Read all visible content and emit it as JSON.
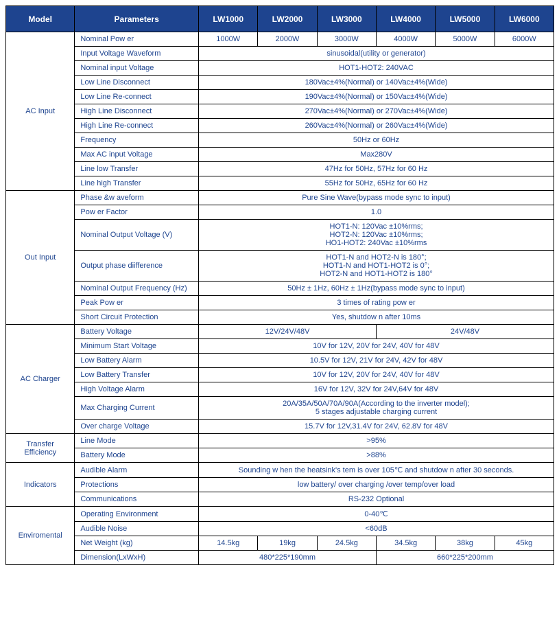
{
  "header": {
    "model": "Model",
    "params": "Parameters",
    "cols": [
      "LW1000",
      "LW2000",
      "LW3000",
      "LW4000",
      "LW5000",
      "LW6000"
    ]
  },
  "cats": {
    "ac_input": "AC Input",
    "out_input": "Out Input",
    "ac_charger": "AC Charger",
    "transfer": "Transfer Efficiency",
    "indicators": "Indicators",
    "enviromental": "Enviromental"
  },
  "rows": {
    "nominal_power": {
      "label": "Nominal Pow er",
      "vals": [
        "1000W",
        "2000W",
        "3000W",
        "4000W",
        "5000W",
        "6000W"
      ]
    },
    "input_waveform": {
      "label": "Input Voltage Waveform",
      "val": "sinusoidal(utility or generator)"
    },
    "nominal_input_v": {
      "label": "Nominal input Voltage",
      "val": "HOT1-HOT2: 240VAC"
    },
    "low_line_disc": {
      "label": "Low Line Disconnect",
      "val": "180Vac±4%(Normal) or 140Vac±4%(Wide)"
    },
    "low_line_rec": {
      "label": "Low Line Re-connect",
      "val": "190Vac±4%(Normal) or 150Vac±4%(Wide)"
    },
    "high_line_disc": {
      "label": "High Line Disconnect",
      "val": "270Vac±4%(Normal) or 270Vac±4%(Wide)"
    },
    "high_line_rec": {
      "label": "High Line Re-connect",
      "val": "260Vac±4%(Normal) or 260Vac±4%(Wide)"
    },
    "frequency": {
      "label": "Frequency",
      "val": "50Hz or 60Hz"
    },
    "max_ac_input": {
      "label": "Max AC input Voltage",
      "val": "Max280V"
    },
    "line_low_transfer": {
      "label": "Line low Transfer",
      "val": "47Hz for 50Hz, 57Hz for 60 Hz"
    },
    "line_high_transfer": {
      "label": "Line high Transfer",
      "val": "55Hz for 50Hz, 65Hz for 60 Hz"
    },
    "phase_waveform": {
      "label": "Phase &w aveform",
      "val": "Pure Sine Wave(bypass mode sync to input)"
    },
    "power_factor": {
      "label": "Pow er Factor",
      "val": "1.0"
    },
    "nominal_out_v": {
      "label": "Nominal Output Voltage (V)",
      "l1": "HOT1-N: 120Vac ±10%rms;",
      "l2": "HOT2-N: 120Vac ±10%rms;",
      "l3": "HO1-HOT2: 240Vac ±10%rms"
    },
    "out_phase_diff": {
      "label": "Output phase diifference",
      "l1": "HOT1-N and HOT2-N is 180°;",
      "l2": "HOT1-N and HOT1-HOT2 is 0°;",
      "l3": "HOT2-N and HOT1-HOT2 is 180°"
    },
    "nominal_out_freq": {
      "label": "Nominal Output Frequency   (Hz)",
      "val": "50Hz ± 1Hz, 60Hz ± 1Hz(bypass mode sync to input)"
    },
    "peak_power": {
      "label": "Peak Pow er",
      "val": "3 times of rating pow er"
    },
    "short_circuit": {
      "label": "Short Circuit Protection",
      "val": "Yes, shutdow n after 10ms"
    },
    "battery_voltage": {
      "label": "Battery Voltage",
      "v1": "12V/24V/48V",
      "v2": "24V/48V"
    },
    "min_start_v": {
      "label": "Minimum Start Voltage",
      "val": "10V for 12V, 20V for 24V, 40V for 48V"
    },
    "low_batt_alarm": {
      "label": "Low Battery Alarm",
      "val": "10.5V for 12V, 21V for 24V, 42V for 48V"
    },
    "low_batt_transfer": {
      "label": "Low Battery Transfer",
      "val": "10V for 12V, 20V for 24V, 40V for 48V"
    },
    "high_volt_alarm": {
      "label": "High Voltage Alarm",
      "val": "16V for 12V, 32V for 24V,64V for 48V"
    },
    "max_charging": {
      "label": "Max Charging Current",
      "l1": "20A/35A/50A/70A/90A(According to the inverter model);",
      "l2": "5 stages adjustable charging current"
    },
    "over_charge_v": {
      "label": "Over charge Voltage",
      "val": "15.7V for 12V,31.4V for 24V, 62.8V for 48V"
    },
    "line_mode": {
      "label": "Line Mode",
      "val": ">95%"
    },
    "battery_mode": {
      "label": "Battery Mode",
      "val": ">88%"
    },
    "audible_alarm": {
      "label": "Audible Alarm",
      "val": "Sounding w hen the heatsink's tem is over 105℃ and shutdow n after 30 seconds."
    },
    "protections": {
      "label": "Protections",
      "val": "low battery/ over charging /over temp/over load"
    },
    "communications": {
      "label": "Communications",
      "val": "RS-232 Optional"
    },
    "op_env": {
      "label": "Operating Environment",
      "val": "0-40℃"
    },
    "audible_noise": {
      "label": "Audible Noise",
      "val": "<60dB"
    },
    "net_weight": {
      "label": "Net Weight (kg)",
      "vals": [
        "14.5kg",
        "19kg",
        "24.5kg",
        "34.5kg",
        "38kg",
        "45kg"
      ]
    },
    "dimension": {
      "label": "Dimension(LxWxH)",
      "v1": "480*225*190mm",
      "v2": "660*225*200mm"
    }
  }
}
